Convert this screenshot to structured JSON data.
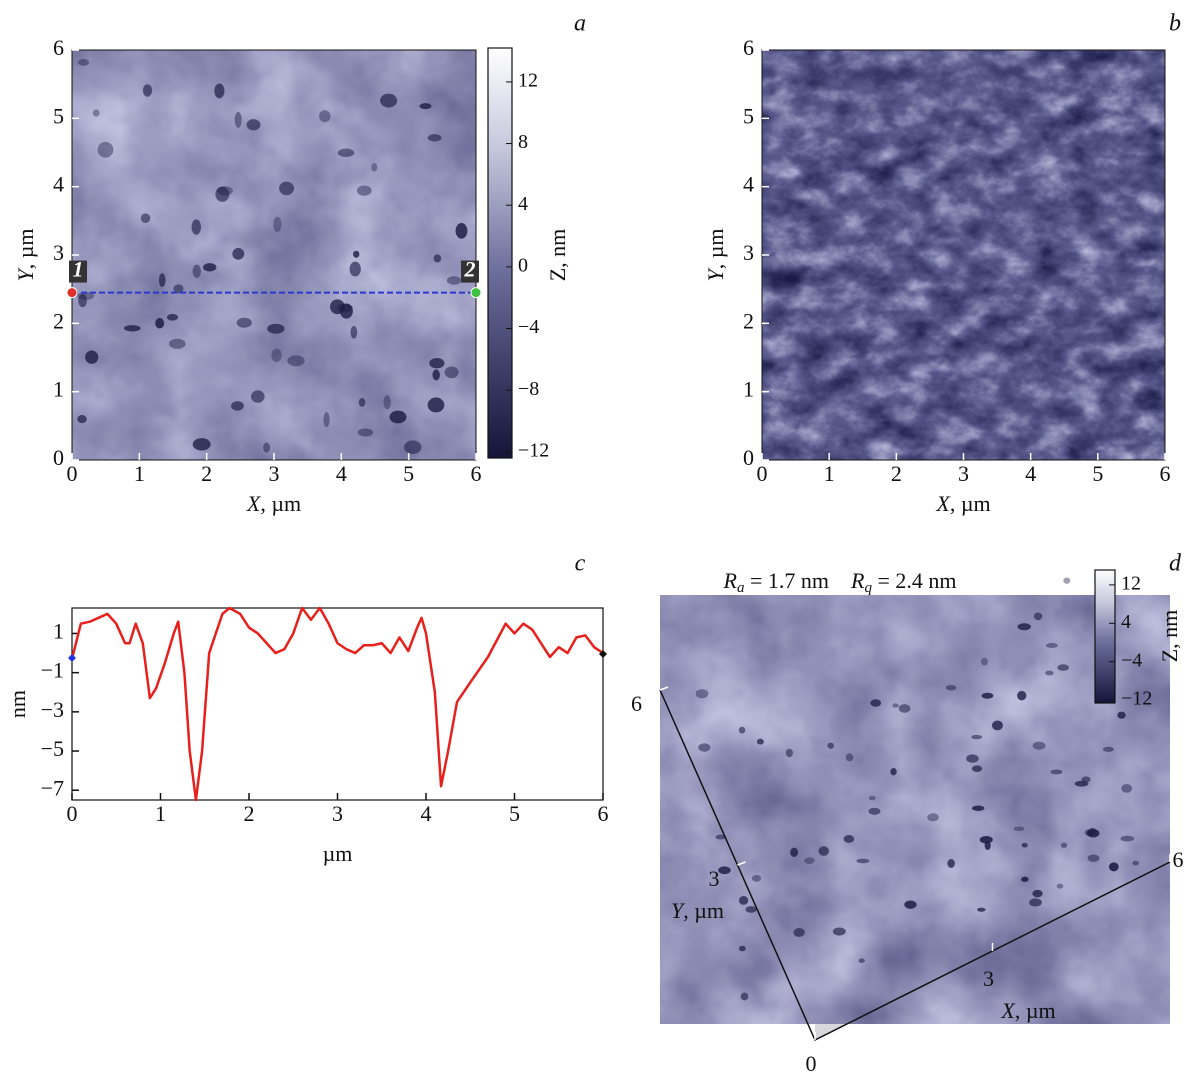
{
  "chart_data": [
    {
      "type": "image",
      "panel": "a",
      "xlabel": {
        "symbol": "X",
        "unit": ", µm"
      },
      "ylabel": {
        "symbol": "Y",
        "unit": ", µm"
      },
      "xlim": [
        0,
        6
      ],
      "ylim": [
        0,
        6
      ],
      "xticks": [
        0,
        1,
        2,
        3,
        4,
        5,
        6
      ],
      "yticks": [
        0,
        1,
        2,
        3,
        4,
        5,
        6
      ],
      "colorbar": {
        "label": "Z, nm",
        "lim": [
          -12.4,
          14.2
        ],
        "ticks": [
          {
            "value": -12,
            "label": "−12"
          },
          {
            "value": -8,
            "label": "−8"
          },
          {
            "value": -4,
            "label": "−4"
          },
          0,
          4,
          8,
          12
        ]
      },
      "profile_line_color": "#2a3ad0",
      "markers": [
        {
          "label": "1",
          "x": 0,
          "y": 2.45,
          "color": "#e0302c"
        },
        {
          "label": "2",
          "x": 6,
          "y": 2.45,
          "color": "#3cc040"
        }
      ]
    },
    {
      "type": "image",
      "panel": "b",
      "xlabel": {
        "symbol": "X",
        "unit": ", µm"
      },
      "ylabel": {
        "symbol": "Y",
        "unit": ", µm"
      },
      "xlim": [
        0,
        6
      ],
      "ylim": [
        0,
        6
      ],
      "xticks": [
        0,
        1,
        2,
        3,
        4,
        5,
        6
      ],
      "yticks": [
        0,
        1,
        2,
        3,
        4,
        5,
        6
      ]
    },
    {
      "type": "line",
      "panel": "c",
      "xlabel": "µm",
      "ylabel": "nm",
      "xlim": [
        0,
        6
      ],
      "ylim": [
        -7.5,
        2.3
      ],
      "xticks": [
        0,
        1,
        2,
        3,
        4,
        5,
        6
      ],
      "yticks": [
        1,
        {
          "value": -1,
          "label": "−1"
        },
        {
          "value": -3,
          "label": "−3"
        },
        {
          "value": -5,
          "label": "−5"
        },
        {
          "value": -7,
          "label": "−7"
        }
      ],
      "x": [
        0,
        0.1,
        0.2,
        0.3,
        0.4,
        0.5,
        0.6,
        0.65,
        0.72,
        0.8,
        0.88,
        0.95,
        1.05,
        1.15,
        1.2,
        1.27,
        1.33,
        1.4,
        1.47,
        1.55,
        1.7,
        1.78,
        1.9,
        2.0,
        2.1,
        2.2,
        2.3,
        2.4,
        2.5,
        2.6,
        2.7,
        2.8,
        2.9,
        3.0,
        3.1,
        3.2,
        3.3,
        3.4,
        3.5,
        3.6,
        3.7,
        3.8,
        3.9,
        3.95,
        4.0,
        4.1,
        4.17,
        4.25,
        4.35,
        4.5,
        4.7,
        4.9,
        5.0,
        5.1,
        5.2,
        5.3,
        5.4,
        5.5,
        5.6,
        5.7,
        5.8,
        5.9,
        6.0
      ],
      "series": [
        {
          "color": "#e8201c",
          "values": [
            -0.3,
            1.5,
            1.6,
            1.8,
            2.0,
            1.5,
            0.5,
            0.5,
            1.5,
            0.5,
            -2.3,
            -1.8,
            -0.5,
            1.0,
            1.6,
            -1.0,
            -5.0,
            -7.5,
            -5.0,
            0.0,
            2.0,
            2.3,
            2.0,
            1.3,
            1.0,
            0.5,
            0.0,
            0.2,
            1.0,
            2.3,
            1.7,
            2.3,
            1.5,
            0.5,
            0.2,
            0.0,
            0.4,
            0.4,
            0.5,
            0.0,
            0.8,
            0.1,
            1.3,
            1.8,
            1.0,
            -2.0,
            -6.8,
            -5.0,
            -2.5,
            -1.5,
            -0.2,
            1.5,
            1.0,
            1.5,
            1.2,
            0.5,
            -0.2,
            0.3,
            0.0,
            0.8,
            0.9,
            0.3,
            0.0
          ]
        }
      ]
    },
    {
      "type": "surface3d",
      "panel": "d",
      "annotations": [
        {
          "symbol": "R",
          "sub": "a",
          "text": " = 1.7 nm"
        },
        {
          "symbol": "R",
          "sub": "q",
          "text": " = 2.4 nm"
        }
      ],
      "xlabel": {
        "symbol": "X",
        "unit": ", µm"
      },
      "ylabel": {
        "symbol": "Y",
        "unit": ", µm"
      },
      "xlim": [
        0,
        6
      ],
      "ylim": [
        0,
        6
      ],
      "xticks": [
        0,
        3,
        6
      ],
      "yticks": [
        3,
        6
      ],
      "colorbar": {
        "label": "Z, nm",
        "lim": [
          -12.6,
          15.1
        ],
        "ticks": [
          {
            "value": -12,
            "label": "−12"
          },
          {
            "value": -4,
            "label": "−4"
          },
          4,
          12
        ]
      }
    }
  ]
}
